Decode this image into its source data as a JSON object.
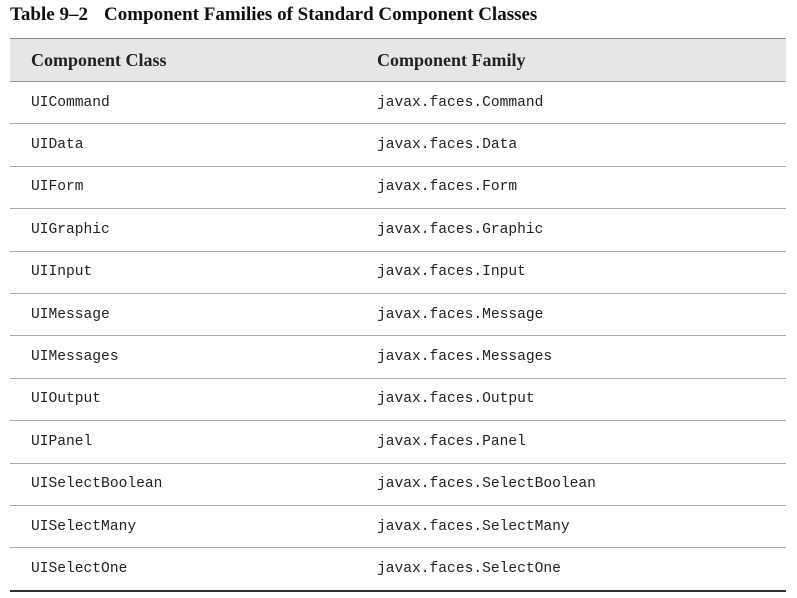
{
  "table": {
    "label": "Table 9–2",
    "title": "Component Families of Standard Component Classes",
    "header": [
      "Component Class",
      "Component Family"
    ],
    "rows": [
      [
        "UICommand",
        "javax.faces.Command"
      ],
      [
        "UIData",
        "javax.faces.Data"
      ],
      [
        "UIForm",
        "javax.faces.Form"
      ],
      [
        "UIGraphic",
        "javax.faces.Graphic"
      ],
      [
        "UIInput",
        "javax.faces.Input"
      ],
      [
        "UIMessage",
        "javax.faces.Message"
      ],
      [
        "UIMessages",
        "javax.faces.Messages"
      ],
      [
        "UIOutput",
        "javax.faces.Output"
      ],
      [
        "UIPanel",
        "javax.faces.Panel"
      ],
      [
        "UISelectBoolean",
        "javax.faces.SelectBoolean"
      ],
      [
        "UISelectMany",
        "javax.faces.SelectMany"
      ],
      [
        "UISelectOne",
        "javax.faces.SelectOne"
      ]
    ]
  }
}
